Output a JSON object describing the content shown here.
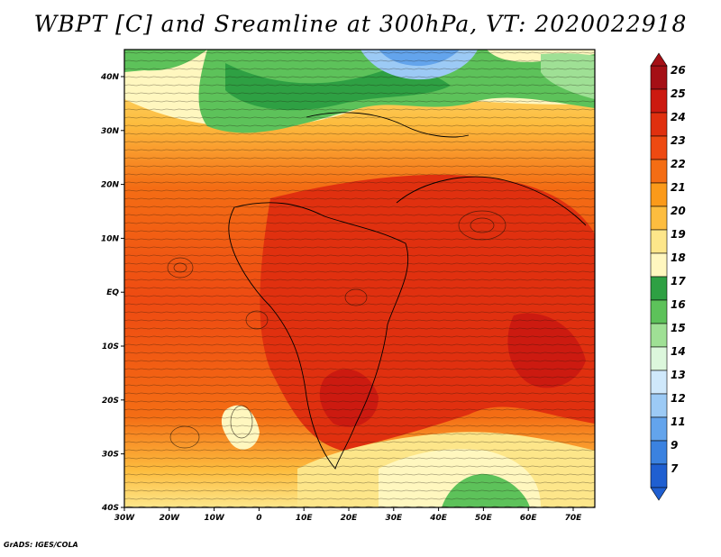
{
  "title": "WBPT [C] and Sreamline at 300hPa, VT: 2020022918",
  "credit": "GrADS: IGES/COLA",
  "lat_labels": [
    "40N",
    "30N",
    "20N",
    "10N",
    "EQ",
    "10S",
    "20S",
    "30S",
    "40S"
  ],
  "lon_labels": [
    "30W",
    "20W",
    "10W",
    "0",
    "10E",
    "20E",
    "30E",
    "40E",
    "50E",
    "60E",
    "70E"
  ],
  "colorbar": {
    "labels": [
      "26",
      "25",
      "24",
      "23",
      "22",
      "21",
      "20",
      "19",
      "18",
      "17",
      "16",
      "15",
      "14",
      "13",
      "12",
      "11",
      "9",
      "7"
    ],
    "colors": [
      "#a50f15",
      "#cc1a10",
      "#e0300f",
      "#ee4a12",
      "#f46d14",
      "#fb9a1a",
      "#fdbd3f",
      "#fde68a",
      "#fff7bf",
      "#2ea043",
      "#5dc25a",
      "#9fe095",
      "#dcf7dc",
      "#cfe8fb",
      "#9ccaf5",
      "#63a4ec",
      "#3b82e0",
      "#1f5fd1"
    ]
  },
  "field_colors": {
    "green_dark": "#2ea043",
    "green": "#5dc25a",
    "green_light": "#9fe095",
    "blue_light": "#cfe8fb",
    "blue": "#9ccaf5",
    "yellow": "#fff7bf",
    "yellow2": "#fde68a",
    "orange_light": "#fdbd3f",
    "orange": "#f46d14",
    "red_orange": "#ee4a12",
    "red": "#e0300f",
    "red_dark": "#cc1a10"
  }
}
